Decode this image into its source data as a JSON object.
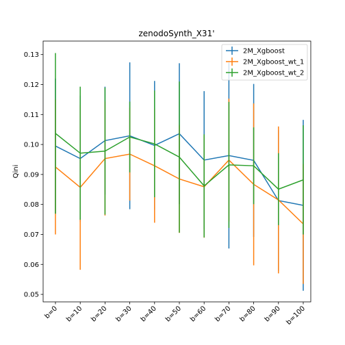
{
  "chart_data": {
    "type": "line",
    "title": "zenodoSynth_X31'",
    "xlabel": "",
    "ylabel": "Qini",
    "categories": [
      "b=0",
      "b=10",
      "b=20",
      "b=30",
      "b=40",
      "b=50",
      "b=60",
      "b=70",
      "b=80",
      "b=90",
      "b=100"
    ],
    "ylim": [
      0.0475,
      0.1345
    ],
    "yticks": [
      0.05,
      0.06,
      0.07,
      0.08,
      0.09,
      0.1,
      0.11,
      0.12,
      0.13
    ],
    "ytick_labels": [
      "0.05",
      "0.06",
      "0.07",
      "0.08",
      "0.09",
      "0.10",
      "0.11",
      "0.12",
      "0.13"
    ],
    "grid": false,
    "legend_position": "top-right",
    "error_bars": true,
    "series": [
      {
        "name": "2M_Xgboost",
        "color": "#1f77b4",
        "values": [
          0.0995,
          0.0953,
          0.1013,
          0.1029,
          0.0997,
          0.1036,
          0.0948,
          0.0963,
          0.0947,
          0.0813,
          0.0797
        ],
        "errors": [
          0.0225,
          0.021,
          0.018,
          0.0245,
          0.0215,
          0.0235,
          0.023,
          0.031,
          0.0255,
          0.0235,
          0.0285
        ]
      },
      {
        "name": "2M_Xgboost_wt_1",
        "color": "#ff7f0e",
        "values": [
          0.0925,
          0.0857,
          0.0953,
          0.0968,
          0.0929,
          0.0885,
          0.0859,
          0.0948,
          0.0867,
          0.0815,
          0.0735
        ],
        "errors": [
          0.0225,
          0.0275,
          0.019,
          0.0155,
          0.019,
          0.018,
          0.017,
          0.0205,
          0.027,
          0.0245,
          0.02
        ]
      },
      {
        "name": "2M_Xgboost_wt_2",
        "color": "#2ca02c",
        "values": [
          0.1037,
          0.0971,
          0.0978,
          0.1025,
          0.1002,
          0.0958,
          0.0862,
          0.0932,
          0.0929,
          0.0851,
          0.0882
        ],
        "errors": [
          0.0268,
          0.0222,
          0.0212,
          0.0118,
          0.0178,
          0.0252,
          0.0172,
          0.021,
          0.0128,
          0.012,
          0.0182
        ]
      }
    ]
  }
}
